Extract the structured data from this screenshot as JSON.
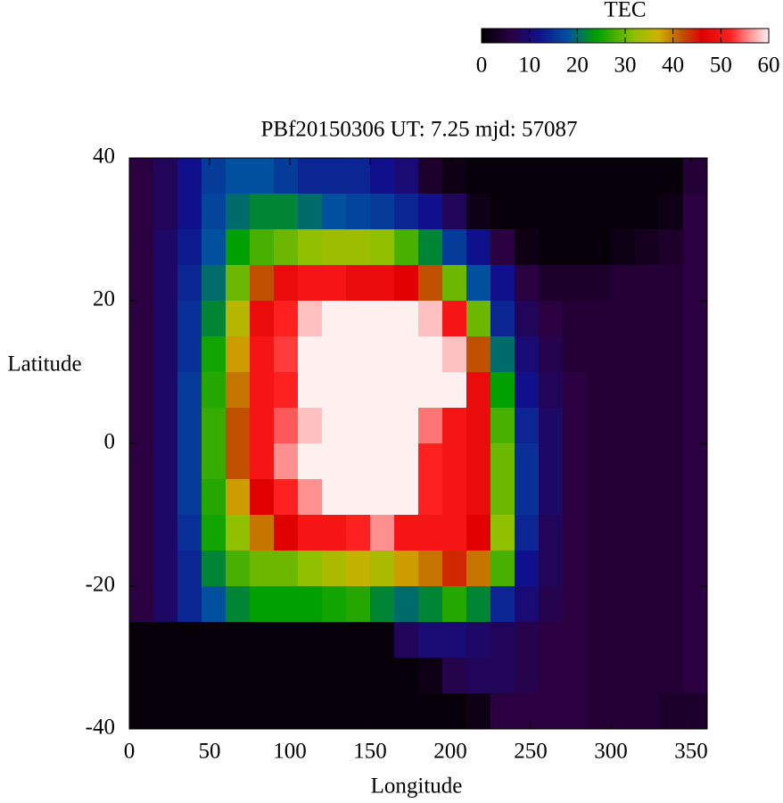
{
  "chart_data": {
    "type": "heatmap",
    "title": "PBf20150306  UT: 7.25  mjd: 57087",
    "x_label": "Longitude",
    "y_label": "Latitude",
    "colorbar_label": "TEC",
    "xlim": [
      0,
      360
    ],
    "xticks": [
      0,
      50,
      100,
      150,
      200,
      250,
      300,
      350
    ],
    "ylim": [
      -40,
      40
    ],
    "yticks": [
      -40,
      -20,
      0,
      20,
      40
    ],
    "zlim": [
      0,
      60
    ],
    "zticks": [
      0,
      10,
      20,
      30,
      40,
      50,
      60
    ],
    "colormap": [
      [
        0,
        "#000000"
      ],
      [
        6,
        "#2a0040"
      ],
      [
        12,
        "#10108c"
      ],
      [
        18,
        "#0050a0"
      ],
      [
        24,
        "#00a000"
      ],
      [
        32,
        "#90c000"
      ],
      [
        37,
        "#d0b000"
      ],
      [
        42,
        "#c05000"
      ],
      [
        46,
        "#e00000"
      ],
      [
        52,
        "#ff2020"
      ],
      [
        56,
        "#ff9090"
      ],
      [
        60,
        "#fff0f0"
      ]
    ],
    "x": [
      7.5,
      22.5,
      37.5,
      52.5,
      67.5,
      82.5,
      97.5,
      112.5,
      127.5,
      142.5,
      157.5,
      172.5,
      187.5,
      202.5,
      217.5,
      232.5,
      247.5,
      262.5,
      277.5,
      292.5,
      307.5,
      322.5,
      337.5,
      352.5
    ],
    "y": [
      37.5,
      32.5,
      27.5,
      22.5,
      17.5,
      12.5,
      7.5,
      2.5,
      -2.5,
      -7.5,
      -12.5,
      -17.5,
      -22.5,
      -27.5,
      -32.5,
      -37.5
    ],
    "values": [
      [
        6,
        8,
        12,
        16,
        18,
        18,
        16,
        14,
        14,
        14,
        12,
        10,
        4,
        2,
        1,
        1,
        1,
        1,
        1,
        1,
        1,
        1,
        1,
        5
      ],
      [
        6,
        8,
        12,
        17,
        20,
        22,
        22,
        20,
        18,
        17,
        16,
        14,
        12,
        8,
        2,
        1,
        1,
        1,
        1,
        1,
        1,
        1,
        2,
        6
      ],
      [
        6,
        9,
        13,
        18,
        24,
        28,
        30,
        32,
        33,
        33,
        32,
        28,
        22,
        16,
        12,
        6,
        2,
        1,
        1,
        1,
        2,
        3,
        4,
        6
      ],
      [
        6,
        9,
        14,
        20,
        30,
        42,
        48,
        50,
        50,
        48,
        48,
        46,
        42,
        30,
        18,
        12,
        6,
        4,
        4,
        4,
        5,
        5,
        5,
        6
      ],
      [
        6,
        9,
        15,
        22,
        35,
        48,
        52,
        58,
        60,
        60,
        60,
        60,
        58,
        50,
        30,
        14,
        8,
        6,
        5,
        5,
        5,
        5,
        5,
        6
      ],
      [
        6,
        9,
        15,
        25,
        38,
        50,
        53,
        60,
        60,
        60,
        60,
        60,
        60,
        58,
        42,
        20,
        10,
        7,
        5,
        5,
        5,
        5,
        5,
        6
      ],
      [
        6,
        9,
        16,
        26,
        40,
        50,
        52,
        60,
        60,
        60,
        60,
        60,
        60,
        60,
        48,
        24,
        12,
        8,
        6,
        5,
        5,
        5,
        5,
        6
      ],
      [
        6,
        9,
        16,
        27,
        42,
        50,
        54,
        58,
        60,
        60,
        60,
        60,
        55,
        50,
        48,
        28,
        14,
        9,
        6,
        5,
        5,
        5,
        5,
        6
      ],
      [
        6,
        9,
        16,
        27,
        42,
        50,
        56,
        60,
        60,
        60,
        60,
        60,
        52,
        50,
        48,
        30,
        15,
        9,
        6,
        5,
        5,
        5,
        5,
        6
      ],
      [
        6,
        9,
        16,
        26,
        38,
        46,
        52,
        56,
        60,
        60,
        60,
        60,
        52,
        50,
        48,
        30,
        15,
        9,
        6,
        5,
        5,
        5,
        5,
        6
      ],
      [
        6,
        9,
        15,
        25,
        32,
        40,
        46,
        50,
        50,
        52,
        56,
        50,
        50,
        50,
        46,
        32,
        14,
        8,
        6,
        5,
        5,
        5,
        5,
        6
      ],
      [
        6,
        9,
        14,
        22,
        28,
        30,
        30,
        32,
        34,
        36,
        34,
        38,
        40,
        44,
        40,
        28,
        12,
        8,
        6,
        5,
        5,
        5,
        5,
        6
      ],
      [
        6,
        9,
        14,
        18,
        22,
        24,
        24,
        24,
        25,
        26,
        22,
        20,
        22,
        26,
        22,
        14,
        10,
        7,
        6,
        5,
        5,
        5,
        5,
        6
      ],
      [
        1,
        1,
        1,
        1,
        1,
        1,
        1,
        1,
        1,
        1,
        1,
        8,
        10,
        10,
        9,
        8,
        7,
        6,
        6,
        5,
        5,
        5,
        5,
        6
      ],
      [
        1,
        1,
        1,
        1,
        1,
        1,
        1,
        1,
        1,
        1,
        1,
        1,
        2,
        7,
        8,
        8,
        7,
        6,
        6,
        5,
        5,
        5,
        5,
        6
      ],
      [
        1,
        1,
        1,
        1,
        1,
        1,
        1,
        1,
        1,
        1,
        1,
        1,
        1,
        1,
        2,
        6,
        6,
        6,
        6,
        5,
        5,
        5,
        4,
        4
      ]
    ]
  }
}
